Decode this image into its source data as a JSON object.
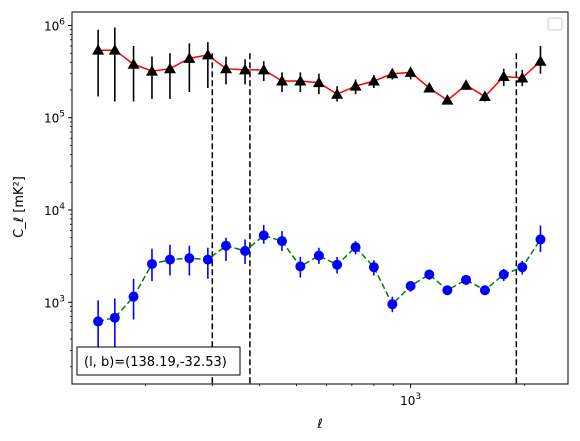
{
  "chart_data": {
    "type": "line",
    "xlabel": "ℓ",
    "ylabel": "C_ℓ  [mK²]",
    "x_scale": "log",
    "y_scale": "log",
    "xlim": [
      128,
      2600
    ],
    "ylim": [
      130,
      1400000
    ],
    "x_ticks": [
      {
        "value": 1000,
        "base": "10",
        "exp": "3"
      }
    ],
    "y_ticks": [
      {
        "value": 1000,
        "base": "10",
        "exp": "3"
      },
      {
        "value": 10000,
        "base": "10",
        "exp": "4"
      },
      {
        "value": 100000,
        "base": "10",
        "exp": "5"
      },
      {
        "value": 1000000,
        "base": "10",
        "exp": "6"
      }
    ],
    "legend": {
      "placement": "top-right",
      "entries": []
    },
    "annotation": "(l, b)=(138.19,-32.53)",
    "vlines": [
      300,
      377,
      1900
    ],
    "series": [
      {
        "marker": "triangle",
        "marker_color": "#000000",
        "line_color": "#ff0000",
        "line_style": "solid",
        "points": [
          {
            "x": 150,
            "y": 540000,
            "lo": 170000,
            "hi": 900000
          },
          {
            "x": 166,
            "y": 540000,
            "lo": 150000,
            "hi": 950000
          },
          {
            "x": 186,
            "y": 380000,
            "lo": 150000,
            "hi": 600000
          },
          {
            "x": 208,
            "y": 320000,
            "lo": 160000,
            "hi": 460000
          },
          {
            "x": 232,
            "y": 340000,
            "lo": 160000,
            "hi": 500000
          },
          {
            "x": 261,
            "y": 440000,
            "lo": 190000,
            "hi": 640000
          },
          {
            "x": 292,
            "y": 480000,
            "lo": 210000,
            "hi": 660000
          },
          {
            "x": 326,
            "y": 340000,
            "lo": 230000,
            "hi": 460000
          },
          {
            "x": 366,
            "y": 330000,
            "lo": 230000,
            "hi": 430000
          },
          {
            "x": 410,
            "y": 330000,
            "lo": 250000,
            "hi": 410000
          },
          {
            "x": 458,
            "y": 250000,
            "lo": 190000,
            "hi": 310000
          },
          {
            "x": 512,
            "y": 250000,
            "lo": 190000,
            "hi": 310000
          },
          {
            "x": 573,
            "y": 240000,
            "lo": 180000,
            "hi": 300000
          },
          {
            "x": 640,
            "y": 180000,
            "lo": 150000,
            "hi": 220000
          },
          {
            "x": 716,
            "y": 220000,
            "lo": 180000,
            "hi": 260000
          },
          {
            "x": 800,
            "y": 250000,
            "lo": 210000,
            "hi": 290000
          },
          {
            "x": 895,
            "y": 300000,
            "lo": 260000,
            "hi": 340000
          },
          {
            "x": 1000,
            "y": 310000,
            "lo": 260000,
            "hi": 350000
          },
          {
            "x": 1120,
            "y": 210000,
            "lo": 190000,
            "hi": 230000
          },
          {
            "x": 1250,
            "y": 155000,
            "lo": 140000,
            "hi": 170000
          },
          {
            "x": 1400,
            "y": 225000,
            "lo": 200000,
            "hi": 250000
          },
          {
            "x": 1570,
            "y": 170000,
            "lo": 150000,
            "hi": 190000
          },
          {
            "x": 1760,
            "y": 280000,
            "lo": 220000,
            "hi": 340000
          },
          {
            "x": 1970,
            "y": 270000,
            "lo": 220000,
            "hi": 330000
          },
          {
            "x": 2200,
            "y": 410000,
            "lo": 300000,
            "hi": 600000
          }
        ]
      },
      {
        "marker": "circle",
        "marker_color": "#0000ff",
        "line_color": "#008000",
        "line_style": "dashed",
        "points": [
          {
            "x": 150,
            "y": 620,
            "lo": 300,
            "hi": 1050
          },
          {
            "x": 166,
            "y": 680,
            "lo": 320,
            "hi": 1100
          },
          {
            "x": 186,
            "y": 1150,
            "lo": 650,
            "hi": 1800
          },
          {
            "x": 208,
            "y": 2600,
            "lo": 1700,
            "hi": 3800
          },
          {
            "x": 232,
            "y": 2900,
            "lo": 1950,
            "hi": 4200
          },
          {
            "x": 261,
            "y": 3000,
            "lo": 1950,
            "hi": 4100
          },
          {
            "x": 292,
            "y": 2900,
            "lo": 1800,
            "hi": 3900
          },
          {
            "x": 326,
            "y": 4100,
            "lo": 2800,
            "hi": 5000
          },
          {
            "x": 366,
            "y": 3600,
            "lo": 2600,
            "hi": 4800
          },
          {
            "x": 410,
            "y": 5300,
            "lo": 4300,
            "hi": 6900
          },
          {
            "x": 458,
            "y": 4600,
            "lo": 3600,
            "hi": 5900
          },
          {
            "x": 512,
            "y": 2450,
            "lo": 1850,
            "hi": 3100
          },
          {
            "x": 573,
            "y": 3200,
            "lo": 2600,
            "hi": 3900
          },
          {
            "x": 640,
            "y": 2550,
            "lo": 2050,
            "hi": 3100
          },
          {
            "x": 716,
            "y": 3950,
            "lo": 3300,
            "hi": 4600
          },
          {
            "x": 800,
            "y": 2400,
            "lo": 1950,
            "hi": 2850
          },
          {
            "x": 895,
            "y": 950,
            "lo": 780,
            "hi": 1150
          },
          {
            "x": 1000,
            "y": 1500,
            "lo": 1300,
            "hi": 1700
          },
          {
            "x": 1120,
            "y": 2000,
            "lo": 1750,
            "hi": 2250
          },
          {
            "x": 1250,
            "y": 1350,
            "lo": 1200,
            "hi": 1500
          },
          {
            "x": 1400,
            "y": 1750,
            "lo": 1550,
            "hi": 1950
          },
          {
            "x": 1570,
            "y": 1350,
            "lo": 1200,
            "hi": 1500
          },
          {
            "x": 1760,
            "y": 2000,
            "lo": 1700,
            "hi": 2300
          },
          {
            "x": 1970,
            "y": 2400,
            "lo": 2000,
            "hi": 2800
          },
          {
            "x": 2200,
            "y": 4800,
            "lo": 3500,
            "hi": 6800
          }
        ]
      }
    ]
  }
}
